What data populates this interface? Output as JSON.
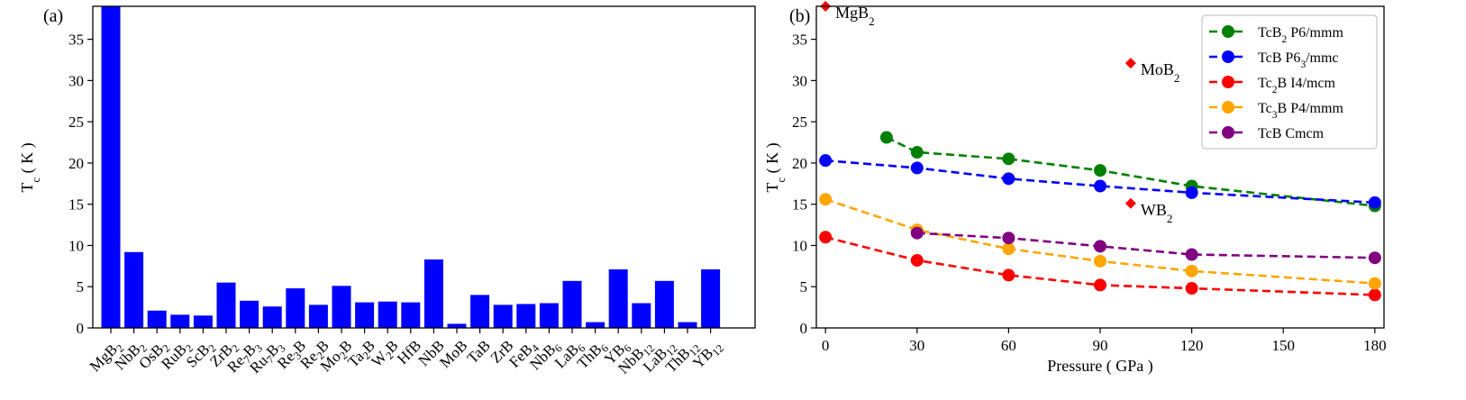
{
  "chart_data": [
    {
      "type": "bar",
      "panel_label": "(a)",
      "ylabel": "T_c ( K )",
      "ylim": [
        0,
        39
      ],
      "yticks": [
        0,
        5,
        10,
        15,
        20,
        25,
        30,
        35
      ],
      "bar_color": "#0000ff",
      "categories": [
        {
          "base": "MgB",
          "sub": "2"
        },
        {
          "base": "NbB",
          "sub": "2"
        },
        {
          "base": "OsB",
          "sub": "2"
        },
        {
          "base": "RuB",
          "sub": "2"
        },
        {
          "base": "ScB",
          "sub": "2"
        },
        {
          "base": "ZrB",
          "sub": "2"
        },
        {
          "base": "Re",
          "sub": "7",
          "base2": "B",
          "sub2": "3"
        },
        {
          "base": "Ru",
          "sub": "7",
          "base2": "B",
          "sub2": "3"
        },
        {
          "base": "Re",
          "sub": "3",
          "base2": "B"
        },
        {
          "base": "Re",
          "sub": "2",
          "base2": "B"
        },
        {
          "base": "Mo",
          "sub": "2",
          "base2": "B"
        },
        {
          "base": "Ta",
          "sub": "2",
          "base2": "B"
        },
        {
          "base": "W",
          "sub": "2",
          "base2": "B"
        },
        {
          "base": "HfB"
        },
        {
          "base": "NbB"
        },
        {
          "base": "MoB"
        },
        {
          "base": "TaB"
        },
        {
          "base": "ZrB"
        },
        {
          "base": "FeB",
          "sub": "4"
        },
        {
          "base": "NbB",
          "sub": "6"
        },
        {
          "base": "LaB",
          "sub": "6"
        },
        {
          "base": "ThB",
          "sub": "6"
        },
        {
          "base": "YB",
          "sub": "6"
        },
        {
          "base": "NbB",
          "sub": "12"
        },
        {
          "base": "LaB",
          "sub": "12"
        },
        {
          "base": "ThB",
          "sub": "12"
        },
        {
          "base": "YB",
          "sub": "12"
        }
      ],
      "values": [
        39,
        9.2,
        2.1,
        1.6,
        1.5,
        5.5,
        3.3,
        2.6,
        4.8,
        2.8,
        5.1,
        3.1,
        3.2,
        3.1,
        8.3,
        0.5,
        4.0,
        2.8,
        2.9,
        3.0,
        5.7,
        0.7,
        7.1,
        3.0,
        5.7,
        0.7,
        7.1
      ]
    },
    {
      "type": "line",
      "panel_label": "(b)",
      "xlabel": "Pressure ( GPa )",
      "ylabel": "T_c ( K )",
      "xlim": [
        -3,
        183
      ],
      "ylim": [
        0,
        39
      ],
      "xticks": [
        0,
        30,
        60,
        90,
        120,
        150,
        180
      ],
      "yticks": [
        0,
        5,
        10,
        15,
        20,
        25,
        30,
        35
      ],
      "legend_position": "top-right",
      "series": [
        {
          "name": "TcB",
          "sub": "2",
          "suffix": " P6/mmm",
          "color": "#008000",
          "x": [
            20,
            30,
            60,
            90,
            120,
            180
          ],
          "y": [
            23.1,
            21.3,
            20.5,
            19.1,
            17.2,
            14.8
          ]
        },
        {
          "name": "TcB P6",
          "sub": "3",
          "suffix": "/mmc",
          "color": "#0000ff",
          "x": [
            0,
            30,
            60,
            90,
            120,
            180
          ],
          "y": [
            20.3,
            19.4,
            18.1,
            17.2,
            16.4,
            15.2
          ]
        },
        {
          "name": "Tc",
          "sub": "2",
          "suffix": "B I4/mcm",
          "color": "#ff0000",
          "x": [
            0,
            30,
            60,
            90,
            120,
            180
          ],
          "y": [
            11.0,
            8.2,
            6.4,
            5.2,
            4.8,
            4.0
          ]
        },
        {
          "name": "Tc",
          "sub": "3",
          "suffix": "B P4/mmm",
          "color": "#ffa500",
          "x": [
            0,
            30,
            60,
            90,
            120,
            180
          ],
          "y": [
            15.6,
            11.9,
            9.6,
            8.1,
            6.9,
            5.4
          ]
        },
        {
          "name": "TcB Cmcm",
          "sub": "",
          "suffix": "",
          "color": "#800080",
          "x": [
            30,
            60,
            90,
            120,
            180
          ],
          "y": [
            11.5,
            10.9,
            9.9,
            8.9,
            8.5
          ]
        }
      ],
      "reference_points": [
        {
          "base": "MgB",
          "sub": "2",
          "x": 0,
          "y": 39,
          "color": "#ff0000"
        },
        {
          "base": "MoB",
          "sub": "2",
          "x": 100,
          "y": 32.1,
          "color": "#ff0000"
        },
        {
          "base": "WB",
          "sub": "2",
          "x": 100,
          "y": 15.1,
          "color": "#ff0000"
        }
      ]
    }
  ]
}
